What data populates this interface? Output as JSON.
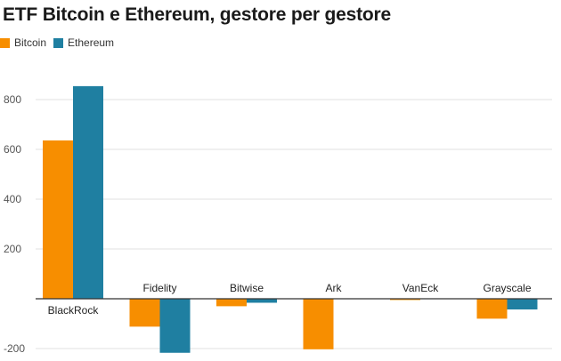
{
  "chart_data": {
    "type": "bar",
    "title": "ETF Bitcoin e Ethereum, gestore per gestore",
    "xlabel": "",
    "ylabel": "",
    "categories": [
      "BlackRock",
      "Fidelity",
      "Bitwise",
      "Ark",
      "VanEck",
      "Grayscale"
    ],
    "series": [
      {
        "name": "Bitcoin",
        "color": "#f78e00",
        "values": [
          636,
          -112,
          -30,
          -203,
          -5,
          -80
        ]
      },
      {
        "name": "Ethereum",
        "color": "#1f7fa1",
        "values": [
          854,
          -217,
          -16,
          0,
          0,
          -43
        ]
      }
    ],
    "yticks": [
      -200,
      200,
      400,
      600,
      800
    ],
    "ylim": [
      -220,
      900
    ],
    "grid": true,
    "legend": "top-left"
  }
}
